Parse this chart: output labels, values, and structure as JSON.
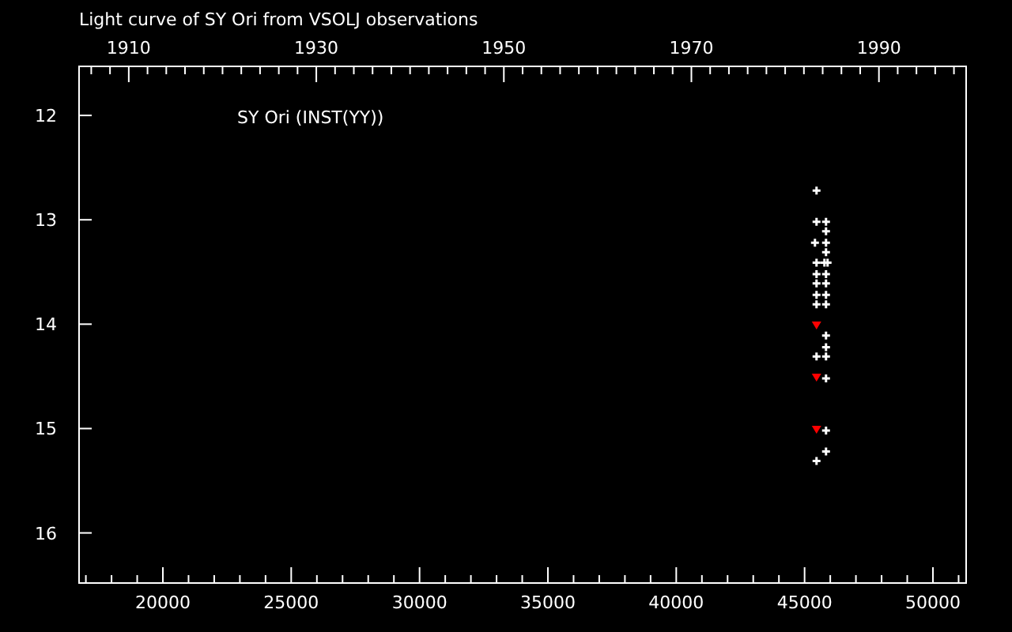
{
  "chart_data": {
    "type": "scatter",
    "title": "Light curve of SY Ori from VSOLJ observations",
    "annotations": [
      "SY Ori (INST(YY))"
    ],
    "xlim": [
      16735,
      51294
    ],
    "ylim": [
      16.48,
      11.53
    ],
    "xticks": [
      {
        "value": 17000,
        "label": null
      },
      {
        "value": 18000,
        "label": null
      },
      {
        "value": 19000,
        "label": null
      },
      20000,
      {
        "value": 21000,
        "label": null
      },
      {
        "value": 22000,
        "label": null
      },
      {
        "value": 23000,
        "label": null
      },
      {
        "value": 24000,
        "label": null
      },
      25000,
      {
        "value": 26000,
        "label": null
      },
      {
        "value": 27000,
        "label": null
      },
      {
        "value": 28000,
        "label": null
      },
      {
        "value": 29000,
        "label": null
      },
      30000,
      {
        "value": 31000,
        "label": null
      },
      {
        "value": 32000,
        "label": null
      },
      {
        "value": 33000,
        "label": null
      },
      {
        "value": 34000,
        "label": null
      },
      35000,
      {
        "value": 36000,
        "label": null
      },
      {
        "value": 37000,
        "label": null
      },
      {
        "value": 38000,
        "label": null
      },
      {
        "value": 39000,
        "label": null
      },
      40000,
      {
        "value": 41000,
        "label": null
      },
      {
        "value": 42000,
        "label": null
      },
      {
        "value": 43000,
        "label": null
      },
      {
        "value": 44000,
        "label": null
      },
      45000,
      {
        "value": 46000,
        "label": null
      },
      {
        "value": 47000,
        "label": null
      },
      {
        "value": 48000,
        "label": null
      },
      {
        "value": 49000,
        "label": null
      },
      50000,
      {
        "value": 51000,
        "label": null
      }
    ],
    "x2lim": [
      1904.7,
      1999.3
    ],
    "x2ticks": [
      {
        "value": 1906,
        "label": null
      },
      {
        "value": 1908,
        "label": null
      },
      1910,
      {
        "value": 1912,
        "label": null
      },
      {
        "value": 1914,
        "label": null
      },
      {
        "value": 1916,
        "label": null
      },
      {
        "value": 1918,
        "label": null
      },
      {
        "value": 1920,
        "label": null
      },
      {
        "value": 1922,
        "label": null
      },
      {
        "value": 1924,
        "label": null
      },
      {
        "value": 1926,
        "label": null
      },
      {
        "value": 1928,
        "label": null
      },
      1930,
      {
        "value": 1932,
        "label": null
      },
      {
        "value": 1934,
        "label": null
      },
      {
        "value": 1936,
        "label": null
      },
      {
        "value": 1938,
        "label": null
      },
      {
        "value": 1940,
        "label": null
      },
      {
        "value": 1942,
        "label": null
      },
      {
        "value": 1944,
        "label": null
      },
      {
        "value": 1946,
        "label": null
      },
      {
        "value": 1948,
        "label": null
      },
      1950,
      {
        "value": 1952,
        "label": null
      },
      {
        "value": 1954,
        "label": null
      },
      {
        "value": 1956,
        "label": null
      },
      {
        "value": 1958,
        "label": null
      },
      {
        "value": 1960,
        "label": null
      },
      {
        "value": 1962,
        "label": null
      },
      {
        "value": 1964,
        "label": null
      },
      {
        "value": 1966,
        "label": null
      },
      {
        "value": 1968,
        "label": null
      },
      1970,
      {
        "value": 1972,
        "label": null
      },
      {
        "value": 1974,
        "label": null
      },
      {
        "value": 1976,
        "label": null
      },
      {
        "value": 1978,
        "label": null
      },
      {
        "value": 1980,
        "label": null
      },
      {
        "value": 1982,
        "label": null
      },
      {
        "value": 1984,
        "label": null
      },
      {
        "value": 1986,
        "label": null
      },
      {
        "value": 1988,
        "label": null
      },
      1990,
      {
        "value": 1992,
        "label": null
      },
      {
        "value": 1994,
        "label": null
      },
      {
        "value": 1996,
        "label": null
      },
      {
        "value": 1998,
        "label": null
      }
    ],
    "yticks": [
      12,
      13,
      14,
      15,
      16
    ],
    "series": [
      {
        "color": "#ffffff",
        "marker": "cross",
        "x": [
          45465,
          45465,
          45835,
          45835,
          45404,
          45835,
          45835,
          45465,
          45773,
          45896,
          45465,
          45835,
          45465,
          45835,
          45465,
          45835,
          45465,
          45835,
          45835,
          45835,
          45465,
          45835,
          45835,
          45835,
          45835,
          45465
        ],
        "values": [
          12.72,
          13.02,
          13.02,
          13.11,
          13.22,
          13.22,
          13.31,
          13.41,
          13.41,
          13.41,
          13.52,
          13.52,
          13.61,
          13.61,
          13.72,
          13.72,
          13.81,
          13.81,
          14.11,
          14.22,
          14.31,
          14.31,
          14.52,
          15.02,
          15.22,
          15.31
        ]
      },
      {
        "color": "#ff0000",
        "marker": "triangle",
        "x": [
          45465,
          45465,
          45465
        ],
        "values": [
          14.02,
          14.52,
          15.02
        ]
      }
    ]
  }
}
